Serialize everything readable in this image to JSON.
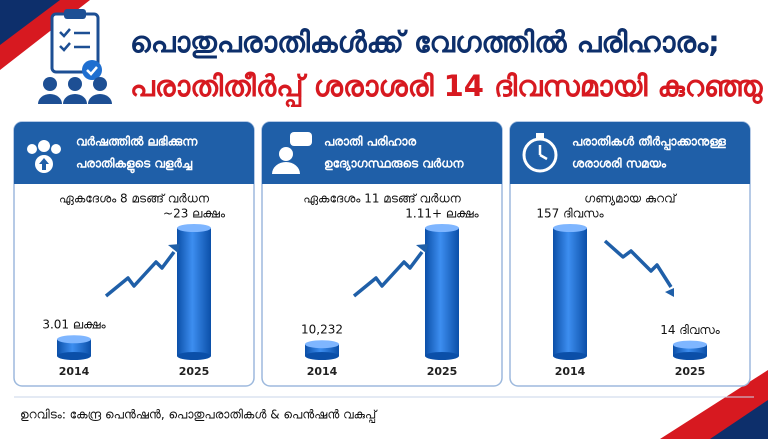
{
  "header": {
    "title_line1": "പൊതുപരാതികൾക്ക് വേഗത്തിൽ പരിഹാരം;",
    "title_line2": "പരാതിതീർപ്പ് ശരാശരി 14 ദിവസമായി കുറഞ്ഞു"
  },
  "chart_data": [
    {
      "type": "bar",
      "title": [
        "വർഷത്തിൽ ലഭിക്കുന്ന",
        "പരാതികളുടെ വളർച്ച"
      ],
      "subtitle": "ഏകദേശം 8 മടങ്ങ് വർധന",
      "categories": [
        "2014",
        "2025"
      ],
      "values": [
        3.01,
        23
      ],
      "value_labels": [
        "3.01 ലക്ഷം",
        "~23 ലക്ഷം"
      ],
      "color": "#1f6fd0"
    },
    {
      "type": "bar",
      "title": [
        "പരാതി പരിഹാര",
        "ഉദ്യോഗസ്ഥരുടെ വർധന"
      ],
      "subtitle": "ഏകദേശം 11 മടങ്ങ് വർധന",
      "categories": [
        "2014",
        "2025"
      ],
      "values": [
        10232,
        111000
      ],
      "value_labels": [
        "10,232",
        "1.11+ ലക്ഷം"
      ],
      "color": "#1f6fd0"
    },
    {
      "type": "bar",
      "title": [
        "പരാതികൾ തീർപ്പാക്കാനുള്ള",
        "ശരാശരി സമയം"
      ],
      "subtitle": "ഗണ്യമായ കുറവ്",
      "categories": [
        "2014",
        "2025"
      ],
      "values": [
        157,
        14
      ],
      "value_labels": [
        "157 ദിവസം",
        "14 ദിവസം"
      ],
      "color": "#1f6fd0"
    }
  ],
  "source": "ഉറവിടം: കേന്ദ്ര പെൻഷൻ, പൊതുപരാതികൾ & പെൻഷൻ വകുപ്പ്"
}
